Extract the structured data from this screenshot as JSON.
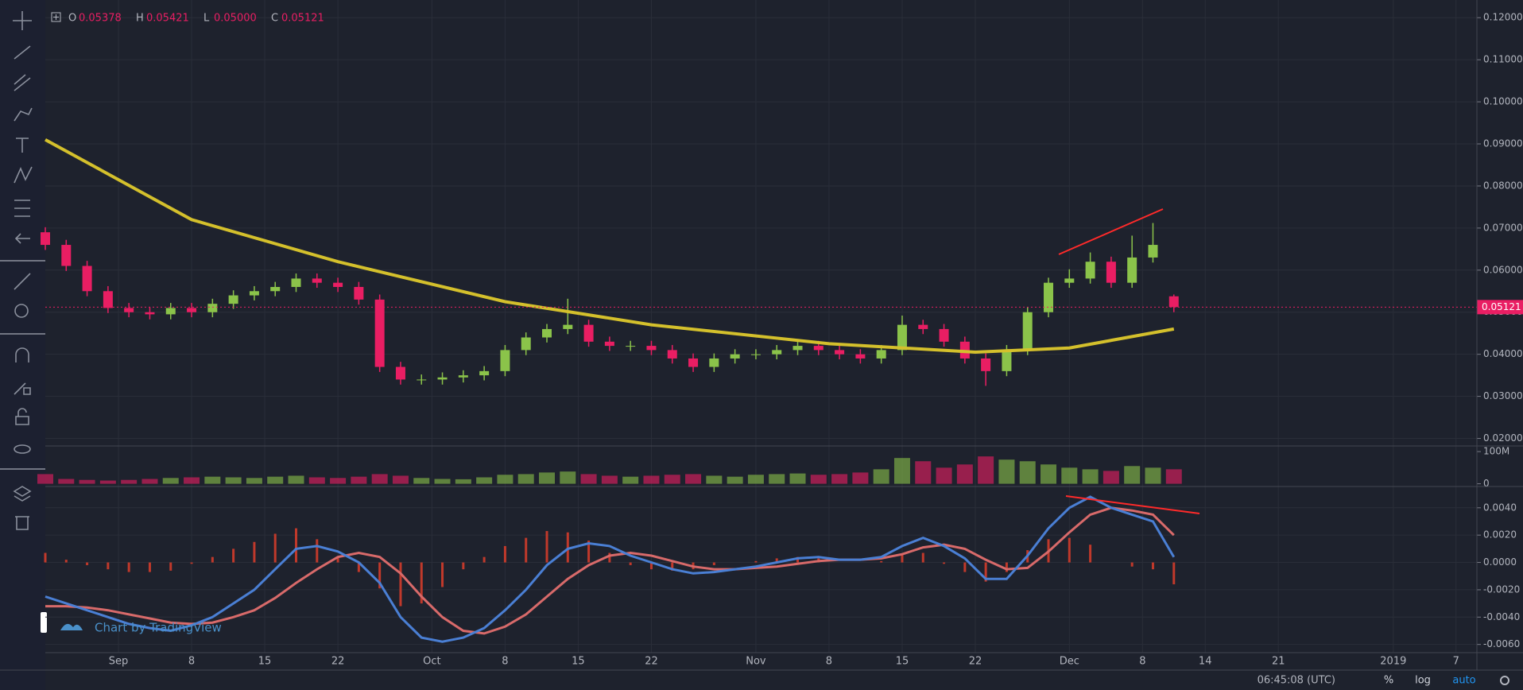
{
  "chart_data": {
    "type": "candlestick",
    "ohlc_header": [
      {
        "label": "O",
        "value": "0.05378"
      },
      {
        "label": "H",
        "value": "0.05421"
      },
      {
        "label": "L",
        "value": "0.05000"
      },
      {
        "label": "C",
        "value": "0.05121"
      }
    ],
    "x": [
      "2018-08-25",
      "2018-08-27",
      "2018-08-29",
      "2018-08-31",
      "2018-09-02",
      "2018-09-04",
      "2018-09-06",
      "2018-09-08",
      "2018-09-10",
      "2018-09-12",
      "2018-09-14",
      "2018-09-16",
      "2018-09-18",
      "2018-09-20",
      "2018-09-22",
      "2018-09-24",
      "2018-09-26",
      "2018-09-28",
      "2018-09-30",
      "2018-10-02",
      "2018-10-04",
      "2018-10-06",
      "2018-10-08",
      "2018-10-10",
      "2018-10-12",
      "2018-10-14",
      "2018-10-16",
      "2018-10-18",
      "2018-10-20",
      "2018-10-22",
      "2018-10-24",
      "2018-10-26",
      "2018-10-28",
      "2018-10-30",
      "2018-11-01",
      "2018-11-03",
      "2018-11-05",
      "2018-11-07",
      "2018-11-09",
      "2018-11-11",
      "2018-11-13",
      "2018-11-15",
      "2018-11-17",
      "2018-11-19",
      "2018-11-21",
      "2018-11-23",
      "2018-11-25",
      "2018-11-27",
      "2018-11-29",
      "2018-12-01",
      "2018-12-03",
      "2018-12-05",
      "2018-12-07",
      "2018-12-09",
      "2018-12-11"
    ],
    "candles": [
      [
        0.069,
        0.0702,
        0.0648,
        0.066
      ],
      [
        0.066,
        0.0672,
        0.0598,
        0.061
      ],
      [
        0.061,
        0.0622,
        0.0538,
        0.055
      ],
      [
        0.055,
        0.0562,
        0.0498,
        0.051
      ],
      [
        0.051,
        0.0522,
        0.0488,
        0.05
      ],
      [
        0.05,
        0.0512,
        0.0483,
        0.0495
      ],
      [
        0.0495,
        0.0522,
        0.0483,
        0.051
      ],
      [
        0.051,
        0.0522,
        0.0488,
        0.05
      ],
      [
        0.05,
        0.0532,
        0.0488,
        0.052
      ],
      [
        0.052,
        0.0552,
        0.0508,
        0.054
      ],
      [
        0.054,
        0.0562,
        0.0528,
        0.055
      ],
      [
        0.055,
        0.0572,
        0.0538,
        0.056
      ],
      [
        0.056,
        0.0592,
        0.0548,
        0.058
      ],
      [
        0.058,
        0.0592,
        0.0558,
        0.057
      ],
      [
        0.057,
        0.0582,
        0.0548,
        0.056
      ],
      [
        0.056,
        0.0572,
        0.0518,
        0.053
      ],
      [
        0.053,
        0.0542,
        0.0358,
        0.037
      ],
      [
        0.037,
        0.0382,
        0.0328,
        0.034
      ],
      [
        0.034,
        0.0352,
        0.0328,
        0.034
      ],
      [
        0.034,
        0.0357,
        0.0328,
        0.0345
      ],
      [
        0.0345,
        0.0362,
        0.0333,
        0.035
      ],
      [
        0.035,
        0.0372,
        0.0338,
        0.036
      ],
      [
        0.036,
        0.0422,
        0.0348,
        0.041
      ],
      [
        0.041,
        0.0452,
        0.0398,
        0.044
      ],
      [
        0.044,
        0.0472,
        0.0428,
        0.046
      ],
      [
        0.046,
        0.0532,
        0.0448,
        0.047
      ],
      [
        0.047,
        0.0482,
        0.0418,
        0.043
      ],
      [
        0.043,
        0.0442,
        0.0408,
        0.042
      ],
      [
        0.042,
        0.0432,
        0.0408,
        0.042
      ],
      [
        0.042,
        0.0432,
        0.0398,
        0.041
      ],
      [
        0.041,
        0.0422,
        0.0378,
        0.039
      ],
      [
        0.039,
        0.0402,
        0.0358,
        0.037
      ],
      [
        0.037,
        0.0402,
        0.0358,
        0.039
      ],
      [
        0.039,
        0.0412,
        0.0378,
        0.04
      ],
      [
        0.04,
        0.0412,
        0.0388,
        0.04
      ],
      [
        0.04,
        0.0422,
        0.0388,
        0.041
      ],
      [
        0.041,
        0.0432,
        0.0398,
        0.042
      ],
      [
        0.042,
        0.0432,
        0.0398,
        0.041
      ],
      [
        0.041,
        0.0422,
        0.0388,
        0.04
      ],
      [
        0.04,
        0.0412,
        0.0378,
        0.039
      ],
      [
        0.039,
        0.0422,
        0.0378,
        0.041
      ],
      [
        0.041,
        0.0492,
        0.0398,
        0.047
      ],
      [
        0.047,
        0.0482,
        0.0448,
        0.046
      ],
      [
        0.046,
        0.0472,
        0.0418,
        0.043
      ],
      [
        0.043,
        0.0442,
        0.0378,
        0.039
      ],
      [
        0.039,
        0.0402,
        0.0325,
        0.036
      ],
      [
        0.036,
        0.0422,
        0.0348,
        0.041
      ],
      [
        0.041,
        0.0512,
        0.0398,
        0.05
      ],
      [
        0.05,
        0.0582,
        0.0488,
        0.057
      ],
      [
        0.057,
        0.0602,
        0.0558,
        0.058
      ],
      [
        0.058,
        0.0642,
        0.0568,
        0.062
      ],
      [
        0.062,
        0.0632,
        0.0558,
        0.057
      ],
      [
        0.057,
        0.0682,
        0.0558,
        0.063
      ],
      [
        0.063,
        0.0712,
        0.0618,
        0.066
      ],
      [
        0.05378,
        0.05421,
        0.05,
        0.05121
      ]
    ],
    "up_color": "#8bc34a",
    "down_color": "#e91e63",
    "moving_average": {
      "color": "#d4c02c",
      "x": [
        "2018-08-25",
        "2018-09-08",
        "2018-09-22",
        "2018-10-08",
        "2018-10-22",
        "2018-11-08",
        "2018-11-22",
        "2018-12-01",
        "2018-12-11"
      ],
      "values": [
        0.091,
        0.072,
        0.062,
        0.0525,
        0.047,
        0.0425,
        0.0405,
        0.0415,
        0.046
      ]
    },
    "last_price": 0.05121,
    "xlim": [
      "2018-08-25",
      "2019-01-09"
    ],
    "xticks": [
      {
        "value": "2018-09-01",
        "label": "Sep"
      },
      {
        "value": "2018-09-08",
        "label": "8"
      },
      {
        "value": "2018-09-15",
        "label": "15"
      },
      {
        "value": "2018-09-22",
        "label": "22"
      },
      {
        "value": "2018-10-01",
        "label": "Oct"
      },
      {
        "value": "2018-10-08",
        "label": "8"
      },
      {
        "value": "2018-10-15",
        "label": "15"
      },
      {
        "value": "2018-10-22",
        "label": "22"
      },
      {
        "value": "2018-11-01",
        "label": "Nov"
      },
      {
        "value": "2018-11-08",
        "label": "8"
      },
      {
        "value": "2018-11-15",
        "label": "15"
      },
      {
        "value": "2018-11-22",
        "label": "22"
      },
      {
        "value": "2018-12-01",
        "label": "Dec"
      },
      {
        "value": "2018-12-08",
        "label": "8"
      },
      {
        "value": "2018-12-14",
        "label": "14"
      },
      {
        "value": "2018-12-21",
        "label": "21"
      },
      {
        "value": "2019-01-01",
        "label": "2019"
      },
      {
        "value": "2019-01-07",
        "label": "7"
      }
    ],
    "ylim": [
      0.0184,
      0.1242
    ],
    "yticks": [
      {
        "value": 0.12,
        "label": "0.12000"
      },
      {
        "value": 0.11,
        "label": "0.11000"
      },
      {
        "value": 0.1,
        "label": "0.10000"
      },
      {
        "value": 0.09,
        "label": "0.09000"
      },
      {
        "value": 0.08,
        "label": "0.08000"
      },
      {
        "value": 0.07,
        "label": "0.07000"
      },
      {
        "value": 0.06,
        "label": "0.06000"
      },
      {
        "value": 0.05,
        "label": "0.05000"
      },
      {
        "value": 0.04,
        "label": "0.04000"
      },
      {
        "value": 0.03,
        "label": "0.03000"
      },
      {
        "value": 0.02,
        "label": "0.02000"
      }
    ],
    "grid": true,
    "volume": {
      "values": [
        30000000,
        15000000,
        12000000,
        10000000,
        12000000,
        15000000,
        18000000,
        20000000,
        22000000,
        20000000,
        18000000,
        22000000,
        25000000,
        20000000,
        18000000,
        22000000,
        30000000,
        25000000,
        18000000,
        15000000,
        14000000,
        20000000,
        28000000,
        30000000,
        35000000,
        38000000,
        30000000,
        25000000,
        22000000,
        25000000,
        28000000,
        30000000,
        25000000,
        22000000,
        28000000,
        30000000,
        32000000,
        28000000,
        30000000,
        35000000,
        45000000,
        80000000,
        70000000,
        50000000,
        60000000,
        85000000,
        75000000,
        70000000,
        60000000,
        50000000,
        45000000,
        40000000,
        55000000,
        50000000,
        45000000
      ],
      "ylim": [
        -6000000,
        115000000
      ],
      "yticks": [
        {
          "value": 100000000,
          "label": "100M"
        },
        0
      ]
    },
    "macd": {
      "macd_color": "#4a7fd4",
      "signal_color": "#d86a6a",
      "histogram_color": "#c0392b",
      "macd": [
        -0.0025,
        -0.003,
        -0.0035,
        -0.004,
        -0.0045,
        -0.0048,
        -0.005,
        -0.0046,
        -0.004,
        -0.003,
        -0.002,
        -0.0005,
        0.001,
        0.0012,
        0.0008,
        0,
        -0.0015,
        -0.004,
        -0.0055,
        -0.0058,
        -0.0055,
        -0.0048,
        -0.0035,
        -0.002,
        -0.0002,
        0.001,
        0.0014,
        0.0012,
        0.0005,
        0,
        -0.0005,
        -0.0008,
        -0.0007,
        -0.0005,
        -0.0003,
        0,
        0.0003,
        0.0004,
        0.0002,
        0.0002,
        0.0004,
        0.0012,
        0.0018,
        0.0012,
        0.0003,
        -0.0012,
        -0.0012,
        0.0005,
        0.0025,
        0.004,
        0.0048,
        0.004,
        0.0035,
        0.003,
        0.0004
      ],
      "signal": [
        -0.0032,
        -0.0032,
        -0.0033,
        -0.0035,
        -0.0038,
        -0.0041,
        -0.0044,
        -0.0045,
        -0.0044,
        -0.004,
        -0.0035,
        -0.0026,
        -0.0015,
        -0.0005,
        0.0004,
        0.0007,
        0.0004,
        -0.0008,
        -0.0025,
        -0.004,
        -0.005,
        -0.0052,
        -0.0047,
        -0.0038,
        -0.0025,
        -0.0012,
        -0.0002,
        0.0005,
        0.0007,
        0.0005,
        0.0001,
        -0.0003,
        -0.0005,
        -0.0005,
        -0.0004,
        -0.0003,
        -0.0001,
        0.0001,
        0.0002,
        0.0002,
        0.0003,
        0.0006,
        0.0011,
        0.0013,
        0.001,
        0.0002,
        -0.0005,
        -0.0004,
        0.0008,
        0.0022,
        0.0035,
        0.004,
        0.0038,
        0.0035,
        0.002
      ],
      "histogram": [
        0.0007,
        0.0002,
        -0.0002,
        -0.0005,
        -0.0007,
        -0.0007,
        -0.0006,
        -0.0001,
        0.0004,
        0.001,
        0.0015,
        0.0021,
        0.0025,
        0.0017,
        0.0004,
        -0.0007,
        -0.0019,
        -0.0032,
        -0.003,
        -0.0018,
        -0.0005,
        0.0004,
        0.0012,
        0.0018,
        0.0023,
        0.0022,
        0.0016,
        0.0007,
        -0.0002,
        -0.0005,
        -0.0006,
        -0.0005,
        -0.0002,
        0,
        0.0001,
        0.0003,
        0.0004,
        0.0003,
        0,
        0,
        0.0001,
        0.0006,
        0.0007,
        -0.0001,
        -0.0007,
        -0.0014,
        -0.0007,
        0.0009,
        0.0017,
        0.0018,
        0.0013,
        0,
        -0.0003,
        -0.0005,
        -0.0016
      ],
      "ylim": [
        -0.0066,
        0.0055
      ],
      "yticks": [
        {
          "value": 0.004,
          "label": "0.0040"
        },
        {
          "value": 0.002,
          "label": "0.0020"
        },
        {
          "value": 0,
          "label": "0.0000"
        },
        {
          "value": -0.002,
          "label": "-0.0020"
        },
        {
          "value": -0.004,
          "label": "-0.0040"
        },
        {
          "value": -0.006,
          "label": "-0.0060"
        }
      ]
    },
    "watermark": "Chart by TradingView",
    "status_bar": {
      "time": "06:45:08 (UTC)",
      "percent": "%",
      "log": "log",
      "auto": "auto"
    }
  }
}
